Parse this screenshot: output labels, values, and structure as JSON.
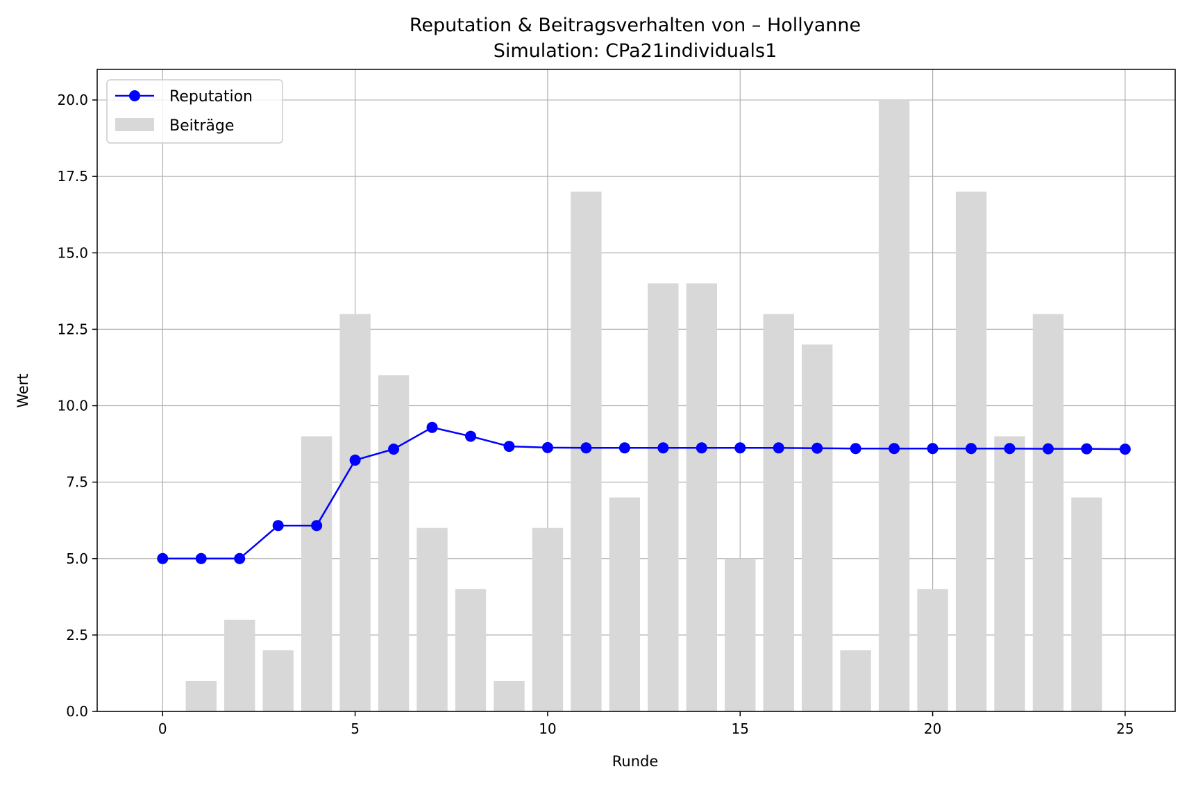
{
  "chart_data": {
    "type": "bar+line",
    "title": "Reputation & Beitragsverhalten von – Hollyanne",
    "subtitle": "Simulation: CPa21individuals1",
    "xlabel": "Runde",
    "ylabel": "Wert",
    "xlim": [
      -1.7,
      26.3
    ],
    "ylim": [
      0,
      21
    ],
    "x_ticks": [
      0,
      5,
      10,
      15,
      20,
      25
    ],
    "y_ticks": [
      0.0,
      2.5,
      5.0,
      7.5,
      10.0,
      12.5,
      15.0,
      17.5,
      20.0
    ],
    "x_tick_labels": [
      "0",
      "5",
      "10",
      "15",
      "20",
      "25"
    ],
    "y_tick_labels": [
      "0.0",
      "2.5",
      "5.0",
      "7.5",
      "10.0",
      "12.5",
      "15.0",
      "17.5",
      "20.0"
    ],
    "grid": true,
    "legend_position": "upper-left",
    "series": [
      {
        "name": "Reputation",
        "kind": "line",
        "color": "#0000ff",
        "marker": "circle",
        "x": [
          0,
          1,
          2,
          3,
          4,
          5,
          6,
          7,
          8,
          9,
          10,
          11,
          12,
          13,
          14,
          15,
          16,
          17,
          18,
          19,
          20,
          21,
          22,
          23,
          24,
          25
        ],
        "values": [
          5.0,
          5.0,
          5.0,
          6.08,
          6.08,
          8.22,
          8.58,
          9.29,
          9.0,
          8.67,
          8.63,
          8.62,
          8.62,
          8.62,
          8.62,
          8.62,
          8.62,
          8.61,
          8.6,
          8.6,
          8.6,
          8.6,
          8.6,
          8.59,
          8.59,
          8.58
        ]
      },
      {
        "name": "Beiträge",
        "kind": "bar",
        "color": "#d8d8d8",
        "x": [
          1,
          2,
          3,
          4,
          5,
          6,
          7,
          8,
          9,
          10,
          11,
          12,
          13,
          14,
          15,
          16,
          17,
          18,
          19,
          20,
          21,
          22,
          23,
          24
        ],
        "values": [
          1,
          3,
          2,
          9,
          13,
          11,
          6,
          4,
          1,
          6,
          17,
          7,
          14,
          14,
          5,
          13,
          12,
          2,
          20,
          4,
          17,
          9,
          13,
          7
        ]
      }
    ]
  }
}
